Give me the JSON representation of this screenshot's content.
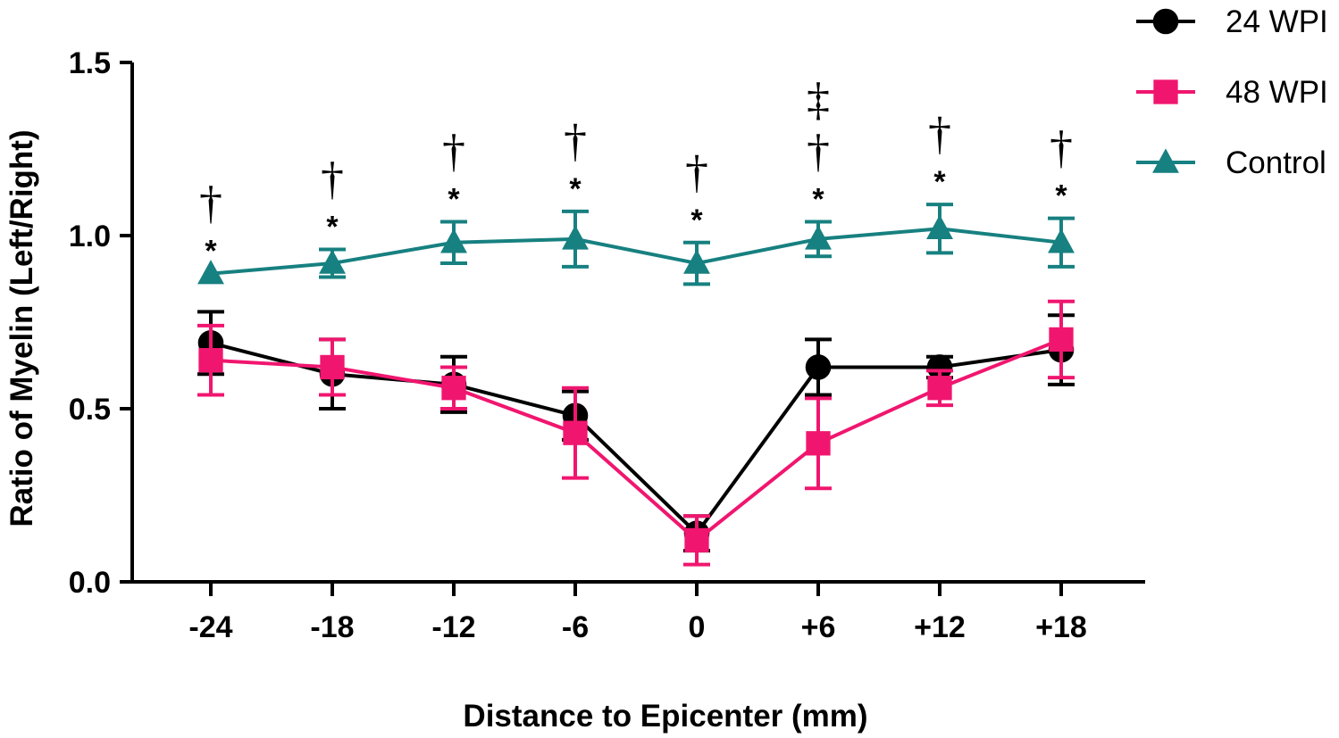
{
  "chart_data": {
    "type": "line",
    "title": "",
    "xlabel": "Distance to Epicenter (mm)",
    "ylabel": "Ratio of Myelin (Left/Right)",
    "ylim": [
      0,
      1.5
    ],
    "yticks": [
      "0.0",
      "0.5",
      "1.0",
      "1.5"
    ],
    "categories": [
      "-24",
      "-18",
      "-12",
      "-6",
      "0",
      "+6",
      "+12",
      "+18"
    ],
    "grid": false,
    "legend_position": "top-right",
    "series": [
      {
        "name": "24 WPI",
        "color": "#000000",
        "marker": "circle",
        "values": [
          0.69,
          0.6,
          0.57,
          0.48,
          0.14,
          0.62,
          0.62,
          0.67
        ],
        "errors": [
          0.09,
          0.1,
          0.08,
          0.07,
          0.05,
          0.08,
          0.03,
          0.1
        ]
      },
      {
        "name": "48 WPI",
        "color": "#f0166f",
        "marker": "square",
        "values": [
          0.64,
          0.62,
          0.56,
          0.43,
          0.12,
          0.4,
          0.56,
          0.7
        ],
        "errors": [
          0.1,
          0.08,
          0.06,
          0.13,
          0.07,
          0.13,
          0.05,
          0.11
        ]
      },
      {
        "name": "Control",
        "color": "#178080",
        "marker": "triangle",
        "values": [
          0.89,
          0.92,
          0.98,
          0.99,
          0.92,
          0.99,
          1.02,
          0.98
        ],
        "errors": [
          0.0,
          0.04,
          0.06,
          0.08,
          0.06,
          0.05,
          0.07,
          0.07
        ]
      }
    ],
    "annotations": [
      {
        "category": "-24",
        "marks": [
          "*",
          "†"
        ]
      },
      {
        "category": "-18",
        "marks": [
          "*",
          "†"
        ]
      },
      {
        "category": "-12",
        "marks": [
          "*",
          "†"
        ]
      },
      {
        "category": "-6",
        "marks": [
          "*",
          "†"
        ]
      },
      {
        "category": "0",
        "marks": [
          "*",
          "†"
        ]
      },
      {
        "category": "+6",
        "marks": [
          "*",
          "†",
          "‡"
        ]
      },
      {
        "category": "+12",
        "marks": [
          "*",
          "†"
        ]
      },
      {
        "category": "+18",
        "marks": [
          "*",
          "†"
        ]
      }
    ]
  }
}
